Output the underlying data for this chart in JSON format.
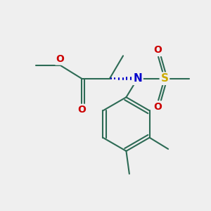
{
  "background_color": "#efefef",
  "bond_color": "#2d6b55",
  "bond_width": 1.5,
  "N_color": "#0000cc",
  "O_color": "#cc0000",
  "S_color": "#ccaa00",
  "C_color": "#000000",
  "figsize": [
    3.0,
    3.0
  ],
  "dpi": 100,
  "xlim": [
    0,
    10
  ],
  "ylim": [
    0,
    10
  ]
}
